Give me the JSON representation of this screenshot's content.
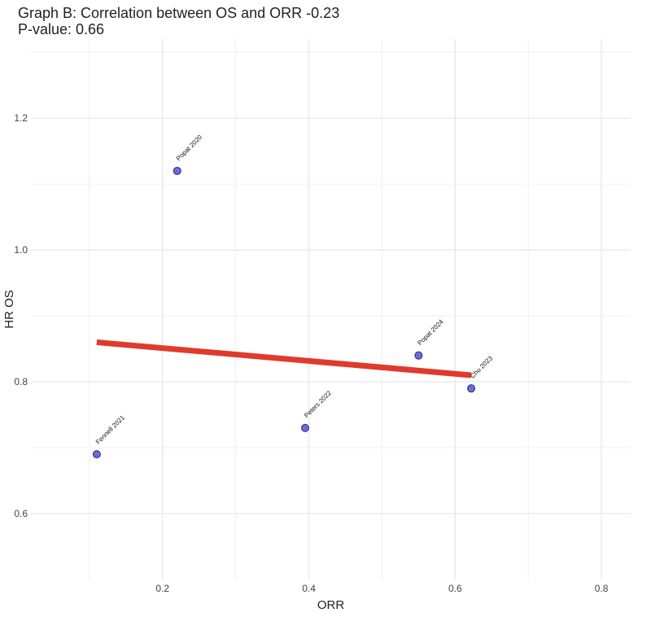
{
  "title": {
    "line1": "Graph B: Correlation between OS and ORR -0.23",
    "line2": "P-value:  0.66"
  },
  "chart_data": {
    "type": "scatter",
    "title": "Graph B: Correlation between OS and ORR -0.23",
    "subtitle": "P-value:  0.66",
    "xlabel": "ORR",
    "ylabel": "HR OS",
    "xlim": [
      0.02,
      0.84
    ],
    "ylim": [
      0.5,
      1.32
    ],
    "x_ticks": [
      0.2,
      0.4,
      0.6,
      0.8
    ],
    "x_tick_labels": [
      "0.2",
      "0.4",
      "0.6",
      "0.8"
    ],
    "y_ticks": [
      0.6,
      0.8,
      1.0,
      1.2
    ],
    "y_tick_labels": [
      "0.6",
      "0.8",
      "1.0",
      "1.2"
    ],
    "grid": true,
    "points": [
      {
        "label": "Fennell 2021",
        "x": 0.11,
        "y": 0.69
      },
      {
        "label": "Popat 2020",
        "x": 0.22,
        "y": 1.12
      },
      {
        "label": "Peters 2022",
        "x": 0.395,
        "y": 0.73
      },
      {
        "label": "Popat  2024",
        "x": 0.55,
        "y": 0.84
      },
      {
        "label": "Chu 2023",
        "x": 0.622,
        "y": 0.79
      }
    ],
    "regression_line": {
      "x": [
        0.11,
        0.622
      ],
      "y": [
        0.86,
        0.81
      ]
    },
    "colors": {
      "point_fill": "#6b6be0",
      "point_stroke": "#2b2b6b",
      "line": "#e03a2c",
      "grid": "#e6e6e6"
    }
  }
}
